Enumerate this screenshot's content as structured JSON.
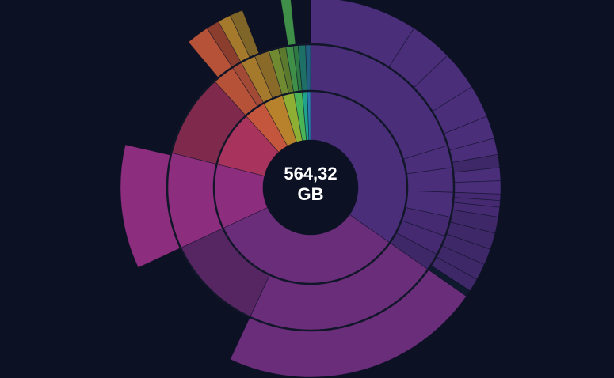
{
  "colors": {
    "background": "#0c1124",
    "center_hole": "#0c1124",
    "ring_divider": "#111629",
    "wedge_border": "#0c1124"
  },
  "center": {
    "value": "564,32",
    "unit": "GB"
  },
  "chart_data": {
    "type": "sunburst",
    "title": "",
    "total": {
      "value": "564,32",
      "unit": "GB"
    },
    "levels": [
      {
        "name": "ring-1",
        "segments": [
          {
            "start": 0,
            "end": 125,
            "color": "#4a2e7a"
          },
          {
            "start": 125,
            "end": 245,
            "color": "#6a2d7a"
          },
          {
            "start": 245,
            "end": 284,
            "color": "#8c2d7e"
          },
          {
            "start": 284,
            "end": 318,
            "color": "#a8345e"
          },
          {
            "start": 318,
            "end": 331,
            "color": "#c4563d"
          },
          {
            "start": 331,
            "end": 343,
            "color": "#b8822d"
          },
          {
            "start": 343,
            "end": 350,
            "color": "#8fae34"
          },
          {
            "start": 350,
            "end": 355,
            "color": "#49b556"
          },
          {
            "start": 355,
            "end": 358,
            "color": "#1fa38a"
          },
          {
            "start": 358,
            "end": 360,
            "color": "#2a7fb0"
          }
        ]
      },
      {
        "name": "ring-2",
        "segments": [
          {
            "start": 0,
            "end": 73,
            "color": "#4a2e7a"
          },
          {
            "start": 73,
            "end": 82,
            "color": "#4a2e7a"
          },
          {
            "start": 82,
            "end": 92,
            "color": "#4a2e7a"
          },
          {
            "start": 92,
            "end": 102,
            "color": "#4a2e7a"
          },
          {
            "start": 102,
            "end": 110,
            "color": "#452a72"
          },
          {
            "start": 110,
            "end": 118,
            "color": "#452a72"
          },
          {
            "start": 118,
            "end": 125,
            "color": "#3f2868"
          },
          {
            "start": 125,
            "end": 205,
            "color": "#6a2d7a"
          },
          {
            "start": 205,
            "end": 245,
            "color": "#552661"
          },
          {
            "start": 245,
            "end": 284,
            "color": "#8c2d7e"
          },
          {
            "start": 284,
            "end": 318,
            "color": "#7f2a4c"
          },
          {
            "start": 318,
            "end": 327,
            "color": "#b65238"
          },
          {
            "start": 327,
            "end": 331,
            "color": "#a34a36"
          },
          {
            "start": 331,
            "end": 337,
            "color": "#a67a2c"
          },
          {
            "start": 337,
            "end": 343,
            "color": "#8a6a28"
          },
          {
            "start": 343,
            "end": 347,
            "color": "#6f8a30"
          },
          {
            "start": 347,
            "end": 350,
            "color": "#5c7a2d"
          },
          {
            "start": 350,
            "end": 353,
            "color": "#3f8f48"
          },
          {
            "start": 353,
            "end": 355,
            "color": "#2f7a44"
          },
          {
            "start": 355,
            "end": 358,
            "color": "#1e6f65"
          },
          {
            "start": 358,
            "end": 360,
            "color": "#235f80"
          }
        ]
      },
      {
        "name": "ring-3",
        "segments": [
          {
            "start": 0,
            "end": 33,
            "color": "#4a2e7a"
          },
          {
            "start": 33,
            "end": 46,
            "color": "#4a2e7a"
          },
          {
            "start": 46,
            "end": 58,
            "color": "#4a2e7a"
          },
          {
            "start": 58,
            "end": 68,
            "color": "#4a2e7a"
          },
          {
            "start": 68,
            "end": 75,
            "color": "#4a2e7a"
          },
          {
            "start": 75,
            "end": 80,
            "color": "#4a2e7a"
          },
          {
            "start": 80,
            "end": 84,
            "color": "#3f2868"
          },
          {
            "start": 84,
            "end": 88,
            "color": "#4a2e7a"
          },
          {
            "start": 88,
            "end": 92,
            "color": "#4a2e7a"
          },
          {
            "start": 92,
            "end": 94,
            "color": "#452a72"
          },
          {
            "start": 94,
            "end": 96,
            "color": "#452a72"
          },
          {
            "start": 96,
            "end": 99,
            "color": "#452a72"
          },
          {
            "start": 99,
            "end": 104,
            "color": "#3f2868"
          },
          {
            "start": 104,
            "end": 109,
            "color": "#3f2868"
          },
          {
            "start": 109,
            "end": 114,
            "color": "#3f2868"
          },
          {
            "start": 114,
            "end": 119,
            "color": "#3f2868"
          },
          {
            "start": 119,
            "end": 123,
            "color": "#3f2868"
          },
          {
            "start": 123,
            "end": 125,
            "color": "#0f1a2e"
          },
          {
            "start": 125,
            "end": 205,
            "color": "#6a2d7a"
          },
          {
            "start": 245,
            "end": 283,
            "color": "#8c2d7e"
          },
          {
            "start": 320,
            "end": 327,
            "color": "#b65238"
          },
          {
            "start": 327,
            "end": 331,
            "color": "#8c3e2e"
          },
          {
            "start": 331,
            "end": 335,
            "color": "#a67a2c"
          },
          {
            "start": 335,
            "end": 339,
            "color": "#7f6528"
          },
          {
            "start": 351,
            "end": 354,
            "color": "#3f8f48"
          }
        ]
      }
    ]
  }
}
